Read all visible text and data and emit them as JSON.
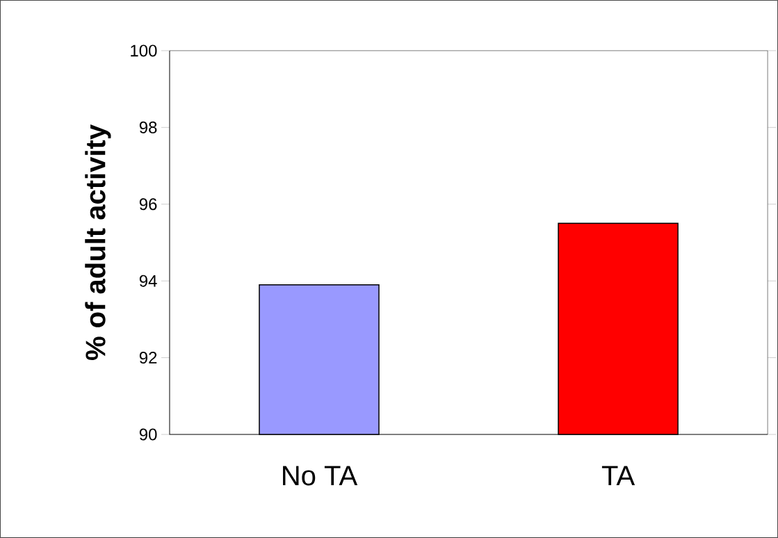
{
  "chart_data": {
    "type": "bar",
    "ylabel": "% of adult activity",
    "categories": [
      "No TA",
      "TA"
    ],
    "values": [
      93.9,
      95.5
    ],
    "colors": [
      "#9999ff",
      "#ff0000"
    ],
    "ylim": [
      90,
      100
    ],
    "yticks": [
      90,
      92,
      94,
      96,
      98,
      100
    ],
    "grid": false
  }
}
